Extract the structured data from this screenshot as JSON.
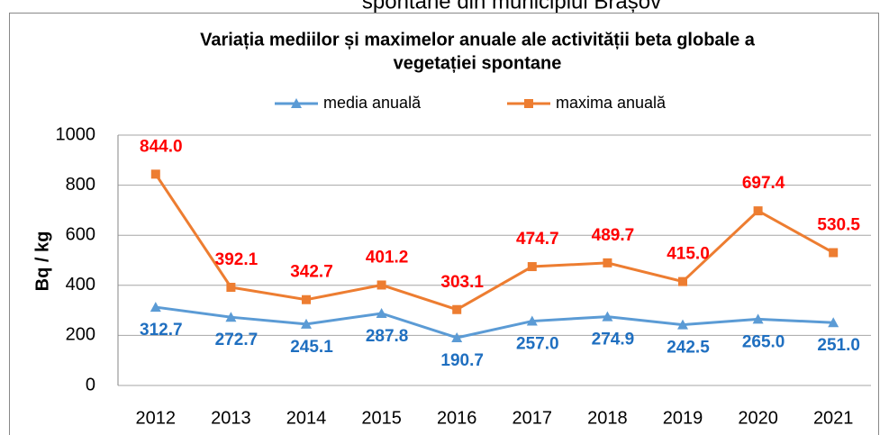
{
  "header_text": "spontane din municipiul Brașov",
  "chart_data": {
    "type": "line",
    "title": [
      "Variația mediilor și maximelor anuale ale activității beta globale a",
      "vegetației spontane"
    ],
    "y_label": "Bq / kg",
    "categories": [
      "2012",
      "2013",
      "2014",
      "2015",
      "2016",
      "2017",
      "2018",
      "2019",
      "2020",
      "2021"
    ],
    "series": [
      {
        "name": "media anuală",
        "color": "#5b9bd5",
        "marker": "triangle",
        "label_color": "#1f6fc0",
        "values": [
          312.7,
          272.7,
          245.1,
          287.8,
          190.7,
          257,
          274.9,
          242.5,
          265,
          251
        ],
        "value_labels": [
          "312.7",
          "272.7",
          "245.1",
          "287.8",
          "190.7",
          "257.0",
          "274.9",
          "242.5",
          "265.0",
          "251.0"
        ]
      },
      {
        "name": "maxima anuală",
        "color": "#ed7d31",
        "marker": "square",
        "label_color": "#ff0000",
        "values": [
          844,
          392.1,
          342.7,
          401.2,
          303.1,
          474.7,
          489.7,
          415,
          697.4,
          530.5
        ],
        "value_labels": [
          "844.0",
          "392.1",
          "342.7",
          "401.2",
          "303.1",
          "474.7",
          "489.7",
          "415.0",
          "697.4",
          "530.5"
        ]
      }
    ],
    "ylim": [
      0,
      1000
    ],
    "yticks": [
      0,
      200,
      400,
      600,
      800,
      1000
    ],
    "grid": true,
    "legend": "top"
  }
}
